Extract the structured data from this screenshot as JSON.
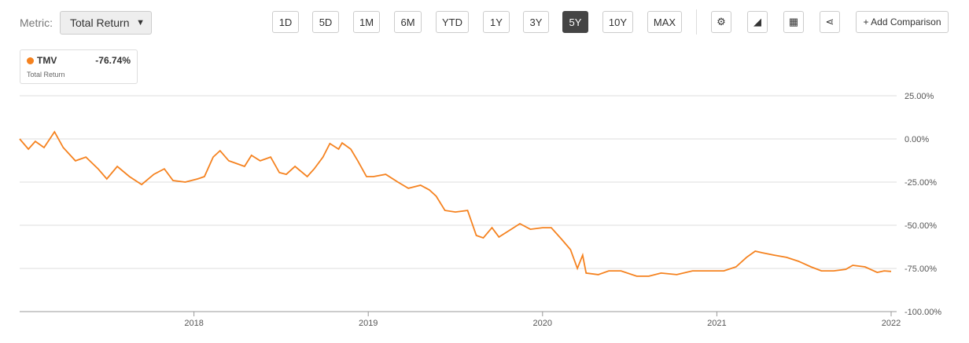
{
  "toolbar": {
    "metric_label": "Metric:",
    "metric_value": "Total Return",
    "ranges": [
      "1D",
      "5D",
      "1M",
      "6M",
      "YTD",
      "1Y",
      "3Y",
      "5Y",
      "10Y",
      "MAX"
    ],
    "active_range": "5Y",
    "add_comparison": "+ Add Comparison"
  },
  "legend": {
    "value": "-76.74%",
    "subtitle": "Total Return"
  },
  "chart_data": {
    "type": "line",
    "x": [
      2017.0,
      2017.05,
      2017.09,
      2017.14,
      2017.2,
      2017.25,
      2017.32,
      2017.38,
      2017.45,
      2017.5,
      2017.56,
      2017.63,
      2017.7,
      2017.77,
      2017.83,
      2017.88,
      2017.95,
      2018.02,
      2018.06,
      2018.11,
      2018.15,
      2018.2,
      2018.24,
      2018.29,
      2018.33,
      2018.38,
      2018.44,
      2018.49,
      2018.53,
      2018.58,
      2018.65,
      2018.69,
      2018.74,
      2018.78,
      2018.83,
      2018.85,
      2018.9,
      2018.94,
      2018.99,
      2019.03,
      2019.1,
      2019.17,
      2019.23,
      2019.3,
      2019.35,
      2019.39,
      2019.44,
      2019.5,
      2019.57,
      2019.62,
      2019.66,
      2019.71,
      2019.75,
      2019.82,
      2019.87,
      2019.93,
      2020.0,
      2020.05,
      2020.11,
      2020.16,
      2020.2,
      2020.23,
      2020.25,
      2020.32,
      2020.38,
      2020.45,
      2020.54,
      2020.61,
      2020.68,
      2020.77,
      2020.86,
      2020.95,
      2021.04,
      2021.11,
      2021.17,
      2021.22,
      2021.26,
      2021.33,
      2021.4,
      2021.47,
      2021.54,
      2021.6,
      2021.67,
      2021.74,
      2021.78,
      2021.85,
      2021.92,
      2021.96,
      2022.0
    ],
    "series": [
      {
        "name": "TMV",
        "color": "#f5821f",
        "values": [
          0,
          -5.9,
          -1.4,
          -5.0,
          4.1,
          -5.0,
          -12.7,
          -10.5,
          -17.3,
          -23.2,
          -15.9,
          -21.8,
          -26.4,
          -20.5,
          -17.3,
          -24.1,
          -25.0,
          -23.2,
          -21.8,
          -10.5,
          -6.8,
          -12.7,
          -14.1,
          -15.9,
          -9.5,
          -12.7,
          -10.5,
          -19.5,
          -20.5,
          -15.9,
          -21.8,
          -17.3,
          -10.5,
          -2.7,
          -5.9,
          -2.3,
          -5.9,
          -12.7,
          -21.8,
          -21.8,
          -20.5,
          -25.0,
          -28.6,
          -26.8,
          -29.5,
          -33.2,
          -41.4,
          -42.3,
          -41.4,
          -55.9,
          -57.3,
          -51.4,
          -56.8,
          -52.3,
          -49.1,
          -52.3,
          -51.4,
          -51.4,
          -58.2,
          -64.1,
          -75.0,
          -67.3,
          -77.7,
          -78.6,
          -76.4,
          -76.4,
          -79.5,
          -79.5,
          -77.7,
          -78.6,
          -76.4,
          -76.4,
          -76.4,
          -74.1,
          -68.6,
          -65.0,
          -65.9,
          -67.3,
          -68.6,
          -70.9,
          -74.1,
          -76.4,
          -76.4,
          -75.5,
          -73.2,
          -74.1,
          -77.3,
          -76.4,
          -76.74
        ]
      }
    ],
    "xlim": [
      2017,
      2022
    ],
    "xticks": [
      2018,
      2019,
      2020,
      2021,
      2022
    ],
    "ylim": [
      -100,
      25
    ],
    "yticks": [
      {
        "value": 25,
        "label": "25.00%"
      },
      {
        "value": 0,
        "label": "0.00%"
      },
      {
        "value": -25,
        "label": "-25.00%"
      },
      {
        "value": -50,
        "label": "-50.00%"
      },
      {
        "value": -75,
        "label": "-75.00%"
      },
      {
        "value": -100,
        "label": "-100.00%"
      }
    ],
    "grid": true
  }
}
